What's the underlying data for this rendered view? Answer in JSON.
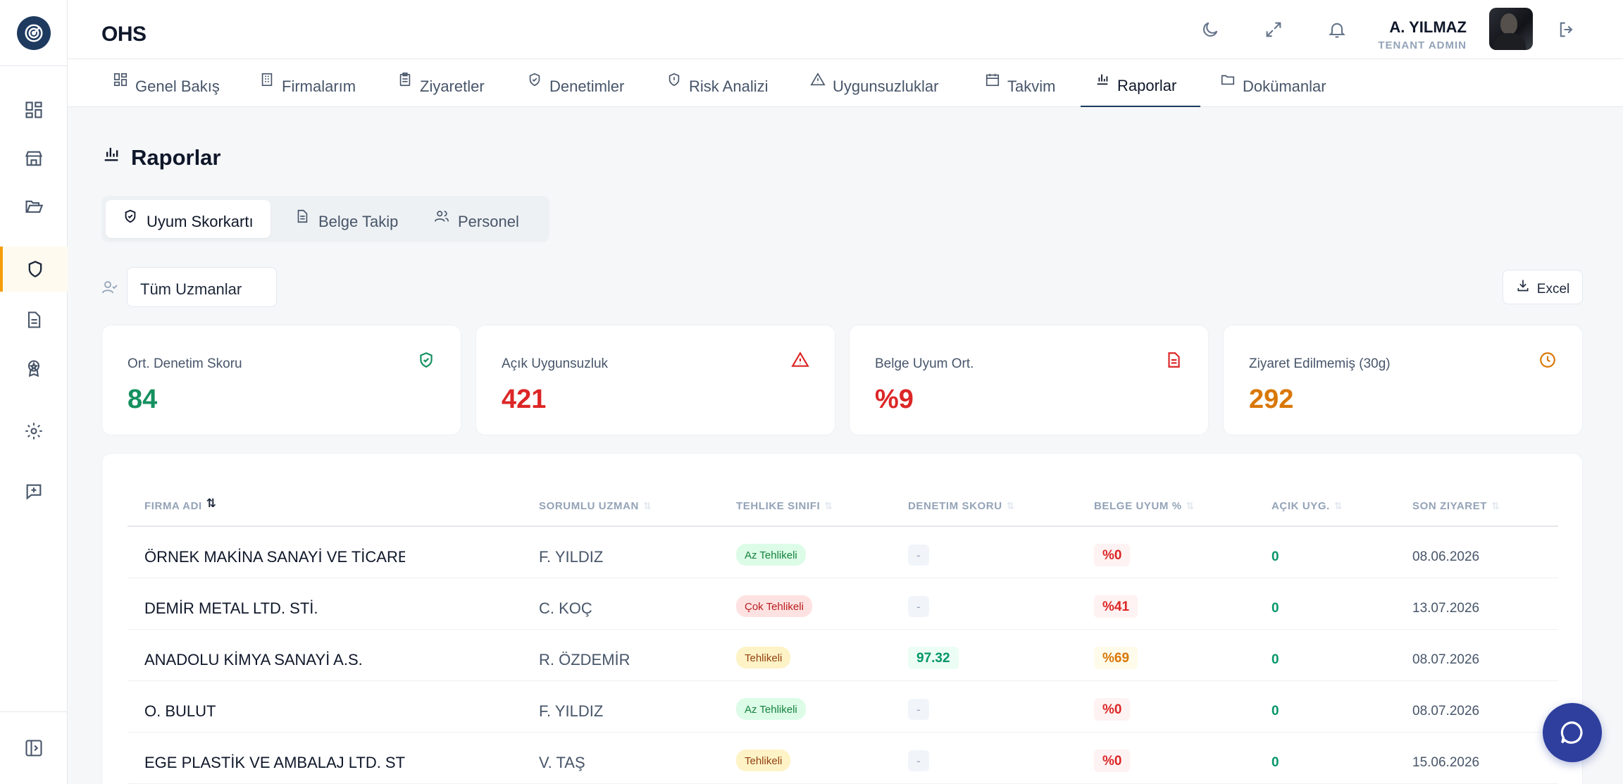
{
  "app": {
    "brand": "OHS"
  },
  "user": {
    "name": "A. YILMAZ",
    "role": "TENANT ADMIN"
  },
  "nav": {
    "tabs": [
      {
        "label": "Genel Bakış",
        "icon": "dashboard-icon"
      },
      {
        "label": "Firmalarım",
        "icon": "building-icon"
      },
      {
        "label": "Ziyaretler",
        "icon": "clipboard-icon"
      },
      {
        "label": "Denetimler",
        "icon": "shield-check-icon"
      },
      {
        "label": "Risk Analizi",
        "icon": "shield-alert-icon"
      },
      {
        "label": "Uygunsuzluklar",
        "icon": "warning-icon"
      },
      {
        "label": "Takvim",
        "icon": "calendar-icon"
      },
      {
        "label": "Raporlar",
        "icon": "bar-chart-icon"
      },
      {
        "label": "Dokümanlar",
        "icon": "folder-icon"
      }
    ],
    "active": "Raporlar"
  },
  "page": {
    "title": "Raporlar"
  },
  "subtabs": [
    {
      "label": "Uyum Skorkartı",
      "icon": "shield-check-icon"
    },
    {
      "label": "Belge Takip",
      "icon": "document-icon"
    },
    {
      "label": "Personel",
      "icon": "users-icon"
    }
  ],
  "filter": {
    "value": "Tüm Uzmanlar"
  },
  "export": {
    "label": "Excel"
  },
  "kpis": [
    {
      "label": "Ort. Denetim Skoru",
      "value": "84",
      "color": "#15905f",
      "icon": "shield-check-icon"
    },
    {
      "label": "Açık Uygunsuzluk",
      "value": "421",
      "color": "#dc2626",
      "icon": "warning-icon"
    },
    {
      "label": "Belge Uyum Ort.",
      "value": "%9",
      "color": "#dc2626",
      "icon": "document-icon"
    },
    {
      "label": "Ziyaret Edilmemiş (30g)",
      "value": "292",
      "color": "#d97706",
      "icon": "clock-icon"
    }
  ],
  "table": {
    "columns": [
      "FIRMA ADI",
      "SORUMLU UZMAN",
      "TEHLIKE SINIFI",
      "DENETIM SKORU",
      "BELGE UYUM %",
      "AÇIK UYG.",
      "SON ZIYARET"
    ],
    "rows": [
      {
        "firm": "ÖRNEK MAKİNA SANAYİ VE TİCARET A.Ş.",
        "uzman": "F. YILDIZ",
        "hazard": "Az Tehlikeli",
        "hazard_level": "green",
        "score": "-",
        "score_level": "gray",
        "belge": "%0",
        "belge_level": "red",
        "acik": "0",
        "date": "08.06.2026"
      },
      {
        "firm": "DEMİR METAL LTD. STİ.",
        "uzman": "C. KOÇ",
        "hazard": "Çok Tehlikeli",
        "hazard_level": "red",
        "score": "-",
        "score_level": "gray",
        "belge": "%41",
        "belge_level": "red",
        "acik": "0",
        "date": "13.07.2026"
      },
      {
        "firm": "ANADOLU KİMYA SANAYİ A.S.",
        "uzman": "R. ÖZDEMİR",
        "hazard": "Tehlikeli",
        "hazard_level": "yellow",
        "score": "97.32",
        "score_level": "green",
        "belge": "%69",
        "belge_level": "amber",
        "acik": "0",
        "date": "08.07.2026"
      },
      {
        "firm": "O. BULUT",
        "uzman": "F. YILDIZ",
        "hazard": "Az Tehlikeli",
        "hazard_level": "green",
        "score": "-",
        "score_level": "gray",
        "belge": "%0",
        "belge_level": "red",
        "acik": "0",
        "date": "08.07.2026"
      },
      {
        "firm": "EGE PLASTİK VE AMBALAJ LTD. STİ.",
        "uzman": "V. TAŞ",
        "hazard": "Tehlikeli",
        "hazard_level": "yellow",
        "score": "-",
        "score_level": "gray",
        "belge": "%0",
        "belge_level": "red",
        "acik": "0",
        "date": "15.06.2026"
      }
    ]
  }
}
